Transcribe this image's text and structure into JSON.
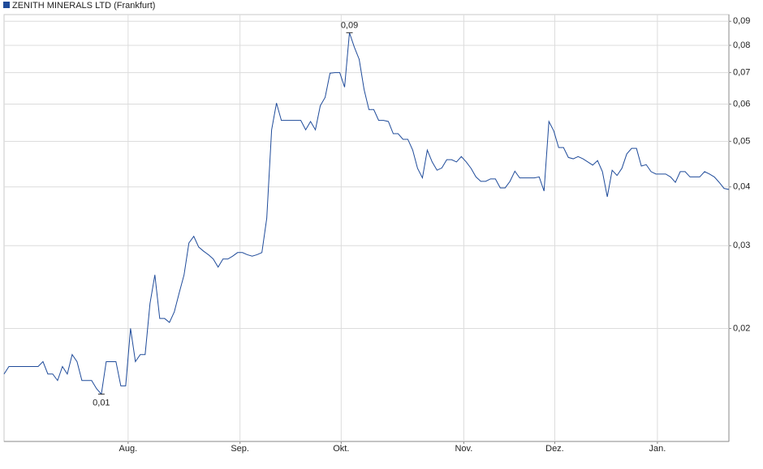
{
  "chart_data": {
    "type": "line",
    "y_scale": "log",
    "grid": true,
    "legend": "top-left",
    "series": [
      {
        "name": "ZENITH MINERALS LTD (Frankfurt)",
        "color": "#1f4b9a",
        "values": [
          0.016,
          0.0166,
          0.0166,
          0.0166,
          0.0166,
          0.0166,
          0.0166,
          0.0166,
          0.017,
          0.016,
          0.016,
          0.0155,
          0.0166,
          0.016,
          0.0176,
          0.017,
          0.0155,
          0.0155,
          0.0155,
          0.0149,
          0.0145,
          0.017,
          0.017,
          0.017,
          0.0151,
          0.0151,
          0.02,
          0.017,
          0.0176,
          0.0176,
          0.0226,
          0.026,
          0.021,
          0.021,
          0.0206,
          0.0217,
          0.0238,
          0.026,
          0.0304,
          0.0314,
          0.0298,
          0.0292,
          0.0287,
          0.0281,
          0.027,
          0.0281,
          0.0281,
          0.0285,
          0.029,
          0.029,
          0.0287,
          0.0285,
          0.0287,
          0.029,
          0.0343,
          0.0529,
          0.0603,
          0.0554,
          0.0554,
          0.0554,
          0.0554,
          0.0554,
          0.0529,
          0.0551,
          0.0529,
          0.0595,
          0.062,
          0.0698,
          0.07,
          0.07,
          0.0652,
          0.0851,
          0.0793,
          0.0747,
          0.0645,
          0.0584,
          0.0584,
          0.0554,
          0.0554,
          0.0551,
          0.0519,
          0.0519,
          0.0505,
          0.0505,
          0.0479,
          0.0438,
          0.0418,
          0.0479,
          0.0452,
          0.0434,
          0.0439,
          0.0457,
          0.0457,
          0.0452,
          0.0464,
          0.0452,
          0.0438,
          0.042,
          0.0411,
          0.0411,
          0.0416,
          0.0416,
          0.0398,
          0.0398,
          0.0411,
          0.0432,
          0.0418,
          0.0418,
          0.0418,
          0.0418,
          0.042,
          0.0392,
          0.0551,
          0.0526,
          0.0485,
          0.0485,
          0.0462,
          0.0459,
          0.0464,
          0.0459,
          0.0452,
          0.0445,
          0.0455,
          0.0431,
          0.0381,
          0.0434,
          0.0423,
          0.0438,
          0.047,
          0.0483,
          0.0483,
          0.0443,
          0.0446,
          0.0431,
          0.0426,
          0.0426,
          0.0426,
          0.042,
          0.0409,
          0.0431,
          0.0431,
          0.042,
          0.042,
          0.042,
          0.0431,
          0.0426,
          0.042,
          0.0409,
          0.0397,
          0.0395
        ]
      }
    ],
    "annotations": [
      {
        "label": "0,09",
        "x": 71,
        "value": 0.0851
      },
      {
        "label": "0,01",
        "x": 20,
        "value": 0.0145
      }
    ],
    "xlim": [
      0,
      149
    ],
    "xticks": [
      {
        "value": 25.5,
        "label": "Aug."
      },
      {
        "value": 48.5,
        "label": "Sep."
      },
      {
        "value": 69.3,
        "label": "Okt."
      },
      {
        "value": 94.5,
        "label": "Nov."
      },
      {
        "value": 113.2,
        "label": "Dez."
      },
      {
        "value": 134.3,
        "label": "Jan."
      }
    ],
    "ylim": [
      0.0115,
      0.093
    ],
    "yticks": [
      {
        "value": 0.02,
        "label": "0,02"
      },
      {
        "value": 0.03,
        "label": "0,03"
      },
      {
        "value": 0.04,
        "label": "0,04"
      },
      {
        "value": 0.05,
        "label": "0,05"
      },
      {
        "value": 0.06,
        "label": "0,06"
      },
      {
        "value": 0.07,
        "label": "0,07"
      },
      {
        "value": 0.08,
        "label": "0,08"
      },
      {
        "value": 0.09,
        "label": "0,09"
      }
    ]
  }
}
